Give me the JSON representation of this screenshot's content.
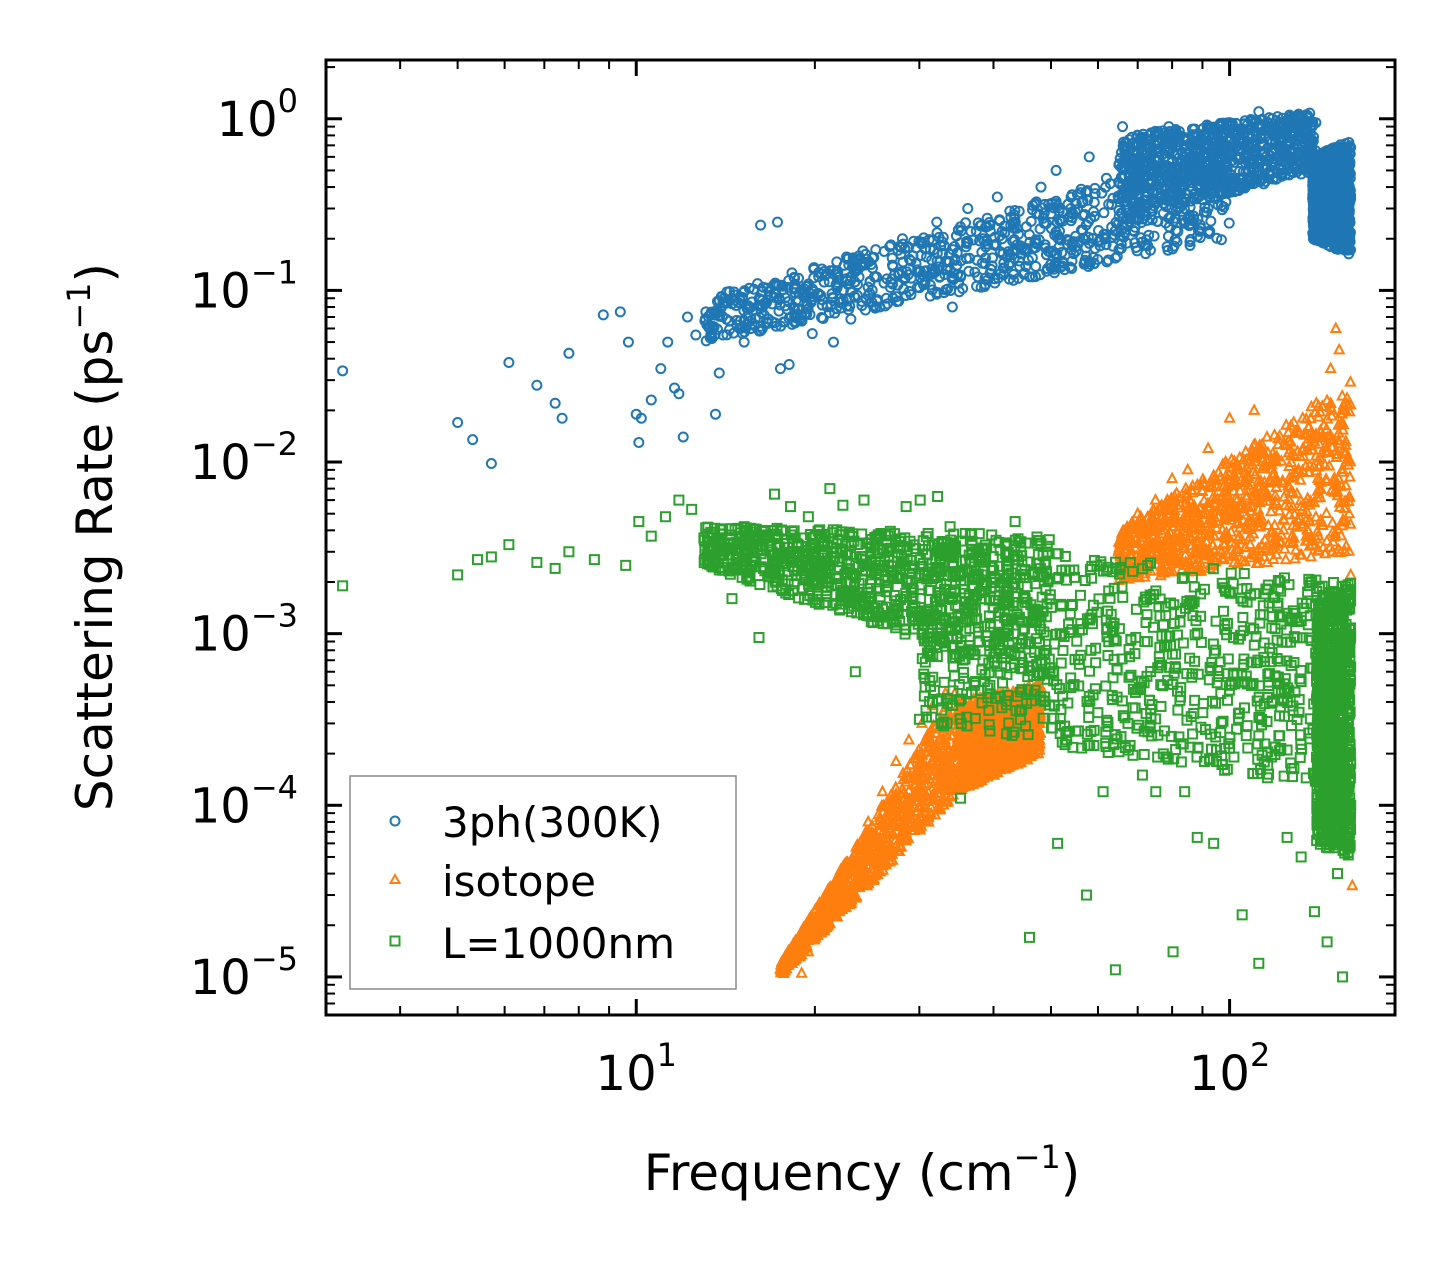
{
  "chart_data": {
    "type": "scatter",
    "xscale": "log",
    "yscale": "log",
    "xlim": [
      3,
      190
    ],
    "ylim": [
      6e-06,
      2.2
    ],
    "xlabel": "Frequency (cm",
    "xlabel_sup": "−1",
    "xlabel_end": ")",
    "ylabel": "Scattering Rate (ps",
    "ylabel_sup": "−1",
    "ylabel_end": ")",
    "x_ticks": [
      {
        "value": 10,
        "base": "10",
        "exp": "1"
      },
      {
        "value": 100,
        "base": "10",
        "exp": "2"
      }
    ],
    "y_ticks": [
      {
        "value": 1,
        "base": "10",
        "exp": "0"
      },
      {
        "value": 0.1,
        "base": "10",
        "exp": "−1"
      },
      {
        "value": 0.01,
        "base": "10",
        "exp": "−2"
      },
      {
        "value": 0.001,
        "base": "10",
        "exp": "−3"
      },
      {
        "value": 0.0001,
        "base": "10",
        "exp": "−4"
      },
      {
        "value": 1e-05,
        "base": "10",
        "exp": "−5"
      }
    ],
    "legend_position": "lower-left",
    "series": [
      {
        "name": "3ph(300K)",
        "color": "#1f77b4",
        "marker": "circle",
        "points": [
          [
            3.2,
            0.034
          ],
          [
            5,
            0.017
          ],
          [
            5.3,
            0.0135
          ],
          [
            5.7,
            0.0098
          ],
          [
            6.1,
            0.038
          ],
          [
            6.8,
            0.028
          ],
          [
            7.3,
            0.022
          ],
          [
            7.5,
            0.018
          ],
          [
            7.7,
            0.043
          ],
          [
            8.8,
            0.072
          ],
          [
            9.4,
            0.075
          ],
          [
            9.7,
            0.05
          ],
          [
            10,
            0.019
          ],
          [
            10.1,
            0.013
          ],
          [
            10.2,
            0.018
          ],
          [
            10.6,
            0.023
          ],
          [
            11,
            0.035
          ],
          [
            11.3,
            0.05
          ],
          [
            11.6,
            0.027
          ],
          [
            11.8,
            0.025
          ],
          [
            12,
            0.014
          ],
          [
            12.2,
            0.07
          ],
          [
            12.6,
            0.055
          ],
          [
            13.1,
            0.075
          ],
          [
            13.6,
            0.019
          ],
          [
            13.8,
            0.033
          ],
          [
            14,
            0.055
          ],
          [
            14.5,
            0.09
          ],
          [
            15.2,
            0.05
          ],
          [
            15.6,
            0.06
          ],
          [
            16.2,
            0.24
          ],
          [
            17.3,
            0.25
          ],
          [
            17.5,
            0.035
          ],
          [
            18.1,
            0.037
          ],
          [
            18.4,
            0.08
          ],
          [
            19,
            0.1
          ],
          [
            19.8,
            0.056
          ],
          [
            20.3,
            0.12
          ],
          [
            21.5,
            0.05
          ],
          [
            22.4,
            0.14
          ],
          [
            23,
            0.068
          ],
          [
            24.1,
            0.17
          ],
          [
            25.2,
            0.12
          ],
          [
            26.4,
            0.09
          ],
          [
            28.1,
            0.2
          ],
          [
            30.2,
            0.16
          ],
          [
            32.1,
            0.25
          ],
          [
            34.1,
            0.08
          ],
          [
            36.2,
            0.3
          ],
          [
            38.4,
            0.2
          ],
          [
            40.6,
            0.35
          ],
          [
            43.2,
            0.25
          ],
          [
            45.8,
            0.15
          ],
          [
            48.1,
            0.4
          ],
          [
            51,
            0.5
          ],
          [
            54,
            0.3
          ],
          [
            58,
            0.6
          ],
          [
            62,
            0.45
          ],
          [
            66,
            0.9
          ],
          [
            70,
            0.8
          ],
          [
            74,
            0.5
          ],
          [
            79,
            0.9
          ],
          [
            84,
            0.6
          ],
          [
            89,
            0.7
          ],
          [
            94,
            0.35
          ],
          [
            100,
            0.95
          ],
          [
            106,
            0.7
          ],
          [
            112,
            1.1
          ],
          [
            118,
            1.0
          ],
          [
            124,
            0.85
          ],
          [
            130,
            0.75
          ],
          [
            136,
            0.5
          ],
          [
            142,
            0.3
          ],
          [
            148,
            0.18
          ],
          [
            151,
            0.4
          ],
          [
            154,
            0.55
          ],
          [
            157,
            0.35
          ],
          [
            159,
            0.25
          ]
        ],
        "bands": [
          {
            "from": 13,
            "to": 100,
            "low_start": 0.05,
            "low_end": 0.2,
            "high_start": 0.09,
            "high_end": 0.7
          },
          {
            "from": 65,
            "to": 140,
            "low_start": 0.25,
            "low_end": 0.5,
            "high_start": 0.8,
            "high_end": 1.1
          },
          {
            "from": 138,
            "to": 160,
            "low_start": 0.2,
            "low_end": 0.16,
            "high_start": 0.6,
            "high_end": 0.75
          }
        ]
      },
      {
        "name": "isotope",
        "color": "#ff7f0e",
        "marker": "triangle",
        "points": [
          [
            17.5,
            1.1e-05
          ],
          [
            18.3,
            1.2e-05
          ],
          [
            19,
            1.05e-05
          ],
          [
            19.5,
            1.4e-05
          ],
          [
            20.5,
            1.8e-05
          ],
          [
            21.3,
            2.5e-05
          ],
          [
            22,
            3.5e-05
          ],
          [
            23.3,
            5e-05
          ],
          [
            24.6,
            8e-05
          ],
          [
            26,
            0.00012
          ],
          [
            27.4,
            0.00018
          ],
          [
            28.8,
            0.00024
          ],
          [
            30.3,
            0.0003
          ],
          [
            31.6,
            0.00038
          ],
          [
            33.2,
            0.00045
          ],
          [
            35.1,
            0.0003
          ],
          [
            37.3,
            0.00025
          ],
          [
            40.1,
            0.00015
          ],
          [
            42.5,
            0.00022
          ],
          [
            45,
            0.0003
          ],
          [
            47.3,
            0.0004
          ],
          [
            65,
            0.003
          ],
          [
            70,
            0.005
          ],
          [
            75,
            0.006
          ],
          [
            80,
            0.008
          ],
          [
            85,
            0.009
          ],
          [
            92,
            0.012
          ],
          [
            100,
            0.018
          ],
          [
            110,
            0.02
          ],
          [
            120,
            0.01
          ],
          [
            130,
            0.015
          ],
          [
            140,
            0.022
          ],
          [
            148,
            0.035
          ],
          [
            151,
            0.06
          ],
          [
            153,
            0.045
          ],
          [
            155,
            0.02
          ],
          [
            157,
            0.01
          ],
          [
            159,
            0.005
          ],
          [
            160,
            0.0022
          ],
          [
            161,
            3.4e-05
          ]
        ],
        "bands": [
          {
            "from": 17.5,
            "to": 35,
            "low_start": 1e-05,
            "low_end": 0.00012,
            "high_start": 1.2e-05,
            "high_end": 0.0005
          },
          {
            "from": 35,
            "to": 48,
            "low_start": 0.00012,
            "low_end": 0.0002,
            "high_start": 0.0004,
            "high_end": 0.0005
          },
          {
            "from": 65,
            "to": 160,
            "low_start": 0.002,
            "low_end": 0.003,
            "high_start": 0.004,
            "high_end": 0.03
          }
        ]
      },
      {
        "name": "L=1000nm",
        "color": "#2ca02c",
        "marker": "square",
        "points": [
          [
            3.2,
            0.0019
          ],
          [
            5,
            0.0022
          ],
          [
            5.4,
            0.0027
          ],
          [
            5.7,
            0.0028
          ],
          [
            6.1,
            0.0033
          ],
          [
            6.8,
            0.0026
          ],
          [
            7.3,
            0.0024
          ],
          [
            7.7,
            0.003
          ],
          [
            8.5,
            0.0027
          ],
          [
            9.6,
            0.0025
          ],
          [
            10.1,
            0.0045
          ],
          [
            10.6,
            0.0037
          ],
          [
            11.2,
            0.0048
          ],
          [
            11.8,
            0.006
          ],
          [
            12.4,
            0.0053
          ],
          [
            13.2,
            0.0038
          ],
          [
            14.1,
            0.0033
          ],
          [
            14.5,
            0.0016
          ],
          [
            15.2,
            0.0042
          ],
          [
            16.1,
            0.00095
          ],
          [
            17.1,
            0.0065
          ],
          [
            18.2,
            0.0055
          ],
          [
            19.5,
            0.0048
          ],
          [
            20.4,
            0.0025
          ],
          [
            21.2,
            0.007
          ],
          [
            22.3,
            0.0056
          ],
          [
            23.4,
            0.0006
          ],
          [
            24.2,
            0.006
          ],
          [
            25.6,
            0.0025
          ],
          [
            27.1,
            0.0012
          ],
          [
            28.5,
            0.0055
          ],
          [
            30.1,
            0.006
          ],
          [
            32.2,
            0.0063
          ],
          [
            33.8,
            0.0042
          ],
          [
            35.2,
            0.00011
          ],
          [
            37.2,
            0.0005
          ],
          [
            40.4,
            0.0035
          ],
          [
            43.5,
            0.0045
          ],
          [
            46,
            1.7e-05
          ],
          [
            48.2,
            0.0007
          ],
          [
            51.3,
            6e-05
          ],
          [
            54.5,
            0.0005
          ],
          [
            57.4,
            3e-05
          ],
          [
            61.2,
            0.00012
          ],
          [
            64.2,
            1.1e-05
          ],
          [
            67.4,
            0.0003
          ],
          [
            71.3,
            0.00015
          ],
          [
            75.1,
            0.00012
          ],
          [
            80.3,
            1.4e-05
          ],
          [
            84,
            0.00012
          ],
          [
            88.2,
            6.5e-05
          ],
          [
            94,
            6e-05
          ],
          [
            100,
            0.0005
          ],
          [
            105,
            2.3e-05
          ],
          [
            112,
            1.2e-05
          ],
          [
            118,
            0.0004
          ],
          [
            125,
            6.5e-05
          ],
          [
            132,
            5e-05
          ],
          [
            139,
            2.4e-05
          ],
          [
            146,
            1.6e-05
          ],
          [
            152,
            4e-05
          ],
          [
            155,
            1e-05
          ],
          [
            158,
            6e-05
          ],
          [
            160,
            0.0001
          ]
        ],
        "bands": [
          {
            "from": 13,
            "to": 50,
            "low_start": 0.0025,
            "low_end": 0.0005,
            "high_start": 0.0042,
            "high_end": 0.0038
          },
          {
            "from": 30,
            "to": 160,
            "low_start": 0.0003,
            "low_end": 0.00012,
            "high_start": 0.0035,
            "high_end": 0.002
          },
          {
            "from": 140,
            "to": 160,
            "low_start": 6e-05,
            "low_end": 5e-05,
            "high_start": 0.0016,
            "high_end": 0.002
          }
        ]
      }
    ]
  }
}
